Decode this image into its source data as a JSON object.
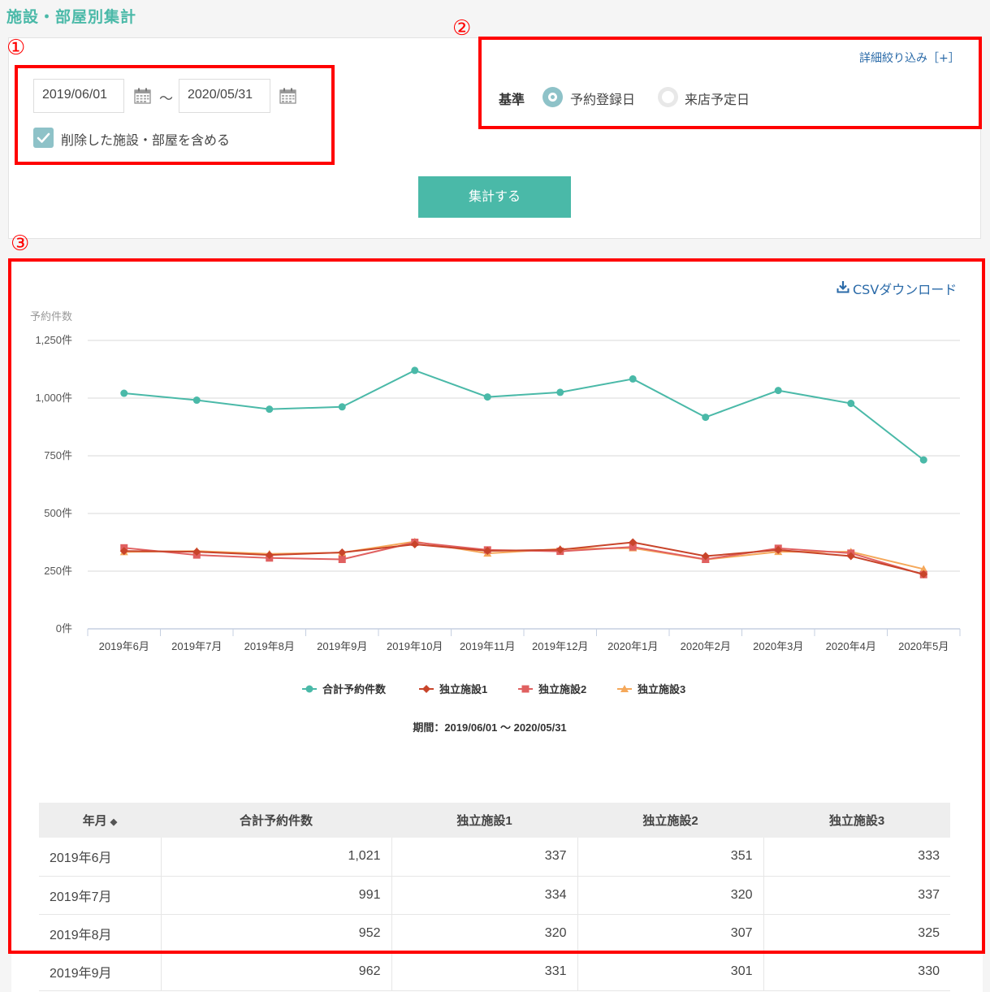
{
  "page": {
    "title": "施設・部屋別集計"
  },
  "filters": {
    "start_date": "2019/06/01",
    "end_date": "2020/05/31",
    "tilde": "〜",
    "include_deleted_label": "削除した施設・部屋を含める",
    "include_deleted_checked": true,
    "detail_link": "詳細絞り込み［+］",
    "criteria_label": "基準",
    "criteria_options": [
      {
        "label": "予約登録日",
        "selected": true
      },
      {
        "label": "来店予定日",
        "selected": false
      }
    ],
    "submit_label": "集計する"
  },
  "annotations": [
    "①",
    "②",
    "③"
  ],
  "csv_download_label": "CSVダウンロード",
  "chart_data": {
    "type": "line",
    "ylabel": "予約件数",
    "ylim": [
      0,
      1250
    ],
    "yticks": [
      "0件",
      "250件",
      "500件",
      "750件",
      "1,000件",
      "1,250件"
    ],
    "categories": [
      "2019年6月",
      "2019年7月",
      "2019年8月",
      "2019年9月",
      "2019年10月",
      "2019年11月",
      "2019年12月",
      "2020年1月",
      "2020年2月",
      "2020年3月",
      "2020年4月",
      "2020年5月"
    ],
    "series": [
      {
        "name": "合計予約件数",
        "color": "#4ab9a8",
        "marker": "circle",
        "values": [
          1021,
          991,
          952,
          962,
          1120,
          1005,
          1025,
          1083,
          917,
          1033,
          977,
          732
        ]
      },
      {
        "name": "独立施設1",
        "color": "#c8442a",
        "marker": "diamond",
        "values": [
          337,
          334,
          320,
          331,
          366,
          338,
          343,
          375,
          315,
          342,
          315,
          237
        ]
      },
      {
        "name": "独立施設2",
        "color": "#e06060",
        "marker": "square",
        "values": [
          351,
          320,
          307,
          301,
          375,
          342,
          336,
          355,
          301,
          349,
          328,
          235
        ]
      },
      {
        "name": "独立施設3",
        "color": "#f5a85a",
        "marker": "triangle",
        "values": [
          333,
          337,
          325,
          330,
          378,
          327,
          346,
          350,
          300,
          334,
          334,
          259
        ]
      }
    ],
    "legend_position": "bottom",
    "subtitle": "期間：2019/06/01 〜 2020/05/31",
    "grid": true
  },
  "table": {
    "headers": [
      "年月",
      "合計予約件数",
      "独立施設1",
      "独立施設2",
      "独立施設3"
    ],
    "rows": [
      [
        "2019年6月",
        "1,021",
        "337",
        "351",
        "333"
      ],
      [
        "2019年7月",
        "991",
        "334",
        "320",
        "337"
      ],
      [
        "2019年8月",
        "952",
        "320",
        "307",
        "325"
      ],
      [
        "2019年9月",
        "962",
        "331",
        "301",
        "330"
      ]
    ]
  }
}
